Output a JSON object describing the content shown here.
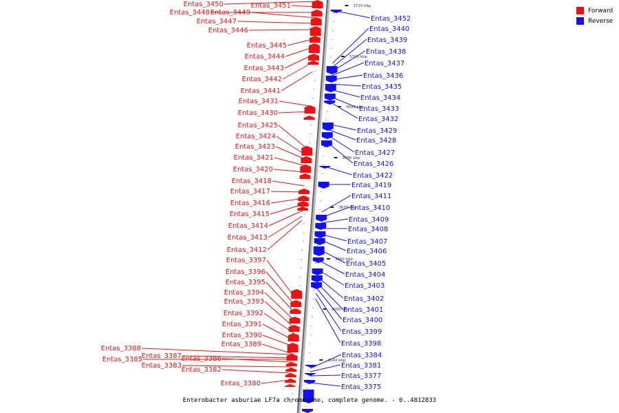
{
  "colors": {
    "forward": "#ee1111",
    "reverse": "#1111ee",
    "line": "#333333"
  },
  "legend": [
    {
      "label": "Forward",
      "color": "#ee1111"
    },
    {
      "label": "Reverse",
      "color": "#1111ee"
    }
  ],
  "caption": "Enterobacter asburiae LF7a chromosome, complete genome. - 0..4812833",
  "ticks": [
    "3710 kbp",
    "3700 kbp",
    "3690 kbp",
    "3680 kbp",
    "3670 kbp",
    "3660 kbp",
    "3650 kbp",
    "3640 kbp"
  ],
  "forward_genes": [
    "Entas_3450",
    "Entas_3451",
    "Entas_3448",
    "Entas_3449",
    "Entas_3447",
    "Entas_3446",
    "Entas_3445",
    "Entas_3444",
    "Entas_3443",
    "Entas_3442",
    "Entas_3441",
    "Entas_3431",
    "Entas_3430",
    "Entas_3425",
    "Entas_3424",
    "Entas_3423",
    "Entas_3421",
    "Entas_3420",
    "Entas_3418",
    "Entas_3417",
    "Entas_3416",
    "Entas_3415",
    "Entas_3414",
    "Entas_3413",
    "Entas_3412",
    "Entas_3397",
    "Entas_3396",
    "Entas_3395",
    "Entas_3394",
    "Entas_3393",
    "Entas_3392",
    "Entas_3391",
    "Entas_3390",
    "Entas_3389",
    "Entas_3388",
    "Entas_3387",
    "Entas_3385",
    "Entas_3386",
    "Entas_3383",
    "Entas_3382",
    "Entas_3380"
  ],
  "reverse_genes": [
    "Entas_3452",
    "Entas_3440",
    "Entas_3439",
    "Entas_3438",
    "Entas_3437",
    "Entas_3436",
    "Entas_3435",
    "Entas_3434",
    "Entas_3433",
    "Entas_3432",
    "Entas_3429",
    "Entas_3428",
    "Entas_3427",
    "Entas_3426",
    "Entas_3422",
    "Entas_3419",
    "Entas_3411",
    "Entas_3410",
    "Entas_3409",
    "Entas_3408",
    "Entas_3407",
    "Entas_3406",
    "Entas_3405",
    "Entas_3404",
    "Entas_3403",
    "Entas_3402",
    "Entas_3401",
    "Entas_3400",
    "Entas_3399",
    "Entas_3398",
    "Entas_3384",
    "Entas_3381",
    "Entas_3377",
    "Entas_3375"
  ]
}
